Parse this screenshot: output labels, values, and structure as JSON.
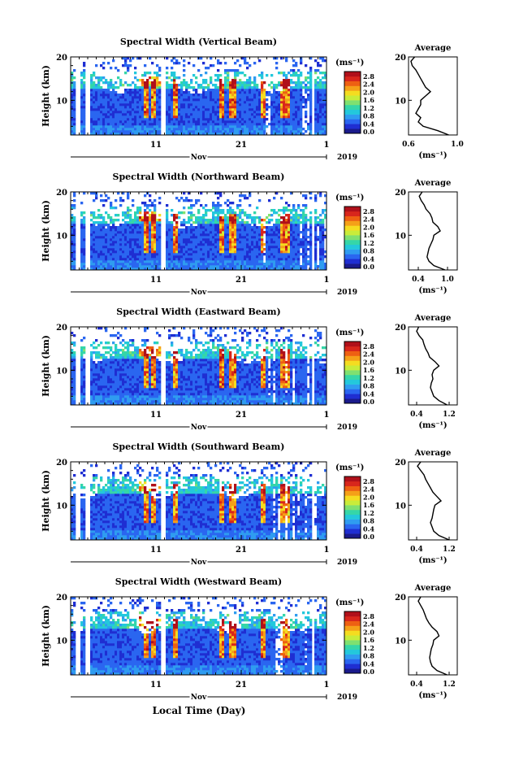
{
  "colorbar": {
    "unit": "(ms⁻¹)",
    "ticks": [
      "2.8",
      "2.4",
      "2.0",
      "1.6",
      "1.2",
      "0.8",
      "0.4",
      "0.0"
    ],
    "colors": [
      "#1a1a8c",
      "#1f2ed2",
      "#2a66f0",
      "#2f9cf0",
      "#23c8dc",
      "#35d6a8",
      "#7fe070",
      "#c9ec3a",
      "#f5dc20",
      "#f5a018",
      "#ee6012",
      "#d8261c",
      "#b0101a"
    ]
  },
  "shared": {
    "month": "Nov",
    "year": "2019",
    "date_ticks": [
      "11",
      "21",
      "1"
    ],
    "xlabel": "Local Time (Day)",
    "ylabel": "Height (km)",
    "y_ticks": [
      "20",
      "10"
    ],
    "avg_title": "Average",
    "avg_xlabel": "(ms⁻¹)"
  },
  "chart_data": [
    {
      "type": "heatmap",
      "title": "Spectral Width (Vertical Beam)",
      "ylabel": "Height (km)",
      "ylim": [
        2,
        20
      ],
      "color_range": [
        0.0,
        2.8
      ],
      "profile": {
        "title": "Average",
        "xticks": [
          "0.6",
          "1.0"
        ],
        "xlim": [
          0.6,
          1.0
        ],
        "heights": [
          2,
          3,
          4,
          5,
          6,
          7,
          8,
          9,
          10,
          11,
          12,
          13,
          14,
          15,
          16,
          17,
          18,
          19,
          20
        ],
        "values": [
          0.93,
          0.84,
          0.72,
          0.68,
          0.7,
          0.66,
          0.68,
          0.7,
          0.7,
          0.74,
          0.78,
          0.74,
          0.72,
          0.7,
          0.68,
          0.66,
          0.63,
          0.62,
          0.65
        ]
      }
    },
    {
      "type": "heatmap",
      "title": "Spectral Width (Northward Beam)",
      "ylabel": "Height (km)",
      "ylim": [
        2,
        20
      ],
      "color_range": [
        0.0,
        2.8
      ],
      "profile": {
        "title": "Average",
        "xticks": [
          "0.4",
          "1.0"
        ],
        "xlim": [
          0.2,
          1.2
        ],
        "heights": [
          2,
          3,
          4,
          5,
          6,
          7,
          8,
          9,
          10,
          11,
          12,
          13,
          14,
          15,
          16,
          17,
          18,
          19,
          20
        ],
        "values": [
          0.95,
          0.72,
          0.62,
          0.58,
          0.6,
          0.62,
          0.66,
          0.7,
          0.72,
          0.85,
          0.8,
          0.7,
          0.68,
          0.64,
          0.56,
          0.52,
          0.46,
          0.42,
          0.48
        ]
      }
    },
    {
      "type": "heatmap",
      "title": "Spectral Width (Eastward Beam)",
      "ylabel": "Height (km)",
      "ylim": [
        2,
        20
      ],
      "color_range": [
        0.0,
        2.8
      ],
      "profile": {
        "title": "Average",
        "xticks": [
          "0.4",
          "1.2"
        ],
        "xlim": [
          0.2,
          1.4
        ],
        "heights": [
          2,
          3,
          4,
          5,
          6,
          7,
          8,
          9,
          10,
          11,
          12,
          13,
          14,
          15,
          16,
          17,
          18,
          19,
          20
        ],
        "values": [
          1.15,
          0.95,
          0.82,
          0.78,
          0.74,
          0.76,
          0.8,
          0.78,
          0.82,
          0.95,
          0.85,
          0.72,
          0.68,
          0.62,
          0.58,
          0.55,
          0.46,
          0.4,
          0.45
        ]
      }
    },
    {
      "type": "heatmap",
      "title": "Spectral Width (Southward Beam)",
      "ylabel": "Height (km)",
      "ylim": [
        2,
        20
      ],
      "color_range": [
        0.0,
        2.8
      ],
      "profile": {
        "title": "Average",
        "xticks": [
          "0.4",
          "1.2"
        ],
        "xlim": [
          0.2,
          1.4
        ],
        "heights": [
          2,
          3,
          4,
          5,
          6,
          7,
          8,
          9,
          10,
          11,
          12,
          13,
          14,
          15,
          16,
          17,
          18,
          19,
          20
        ],
        "values": [
          1.2,
          0.95,
          0.82,
          0.78,
          0.74,
          0.78,
          0.8,
          0.82,
          0.85,
          1.0,
          0.9,
          0.8,
          0.74,
          0.68,
          0.62,
          0.58,
          0.5,
          0.42,
          0.5
        ]
      }
    },
    {
      "type": "heatmap",
      "title": "Spectral Width (Westward Beam)",
      "ylabel": "Height (km)",
      "ylim": [
        2,
        20
      ],
      "color_range": [
        0.0,
        2.8
      ],
      "profile": {
        "title": "Average",
        "xticks": [
          "0.4",
          "1.2"
        ],
        "xlim": [
          0.2,
          1.4
        ],
        "heights": [
          2,
          3,
          4,
          5,
          6,
          7,
          8,
          9,
          10,
          11,
          12,
          13,
          14,
          15,
          16,
          17,
          18,
          19,
          20
        ],
        "values": [
          1.15,
          0.9,
          0.78,
          0.74,
          0.72,
          0.74,
          0.76,
          0.8,
          0.82,
          0.95,
          0.9,
          0.78,
          0.7,
          0.64,
          0.6,
          0.56,
          0.5,
          0.44,
          0.5
        ]
      }
    }
  ]
}
